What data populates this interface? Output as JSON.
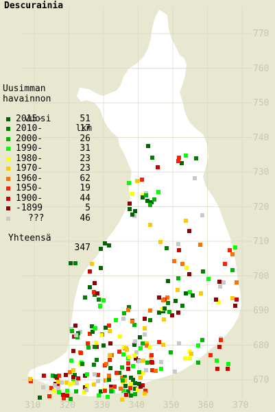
{
  "title": "Descurainia",
  "legend": {
    "heading_lines": [
      "Uusimman",
      "havainnon",
      "vuosi"
    ],
    "count_header": "lkm",
    "rows": [
      {
        "label": "2015-",
        "count": "51",
        "color": "#006400"
      },
      {
        "label": "2010-",
        "count": "17",
        "color": "#008000"
      },
      {
        "label": "2000-",
        "count": "26",
        "color": "#00b400"
      },
      {
        "label": "1990-",
        "count": "31",
        "color": "#00ff00"
      },
      {
        "label": "1980-",
        "count": "23",
        "color": "#ffff00"
      },
      {
        "label": "1970-",
        "count": "23",
        "color": "#ffc800"
      },
      {
        "label": "1960-",
        "count": "62",
        "color": "#ff7000"
      },
      {
        "label": "1950-",
        "count": "19",
        "color": "#ff2000"
      },
      {
        "label": "1900-",
        "count": "44",
        "color": "#d00000"
      },
      {
        "label": "-1899",
        "count": "5",
        "color": "#900000"
      },
      {
        "label": "???",
        "count": "46",
        "color": "#c8c8c8"
      }
    ],
    "total_label": "Yhteensä",
    "total_count": "347"
  },
  "y_axis_labels": [
    "770",
    "760",
    "750",
    "740",
    "730",
    "720",
    "710",
    "700",
    "690",
    "680",
    "670"
  ],
  "x_axis_labels": [
    "310",
    "320",
    "330",
    "340",
    "350",
    "360",
    "370"
  ],
  "colors": {
    "background": "#e8e8d0",
    "land": "#ffffff",
    "grid": "#d8d8c0",
    "axis_text": "#c8c8b0"
  }
}
